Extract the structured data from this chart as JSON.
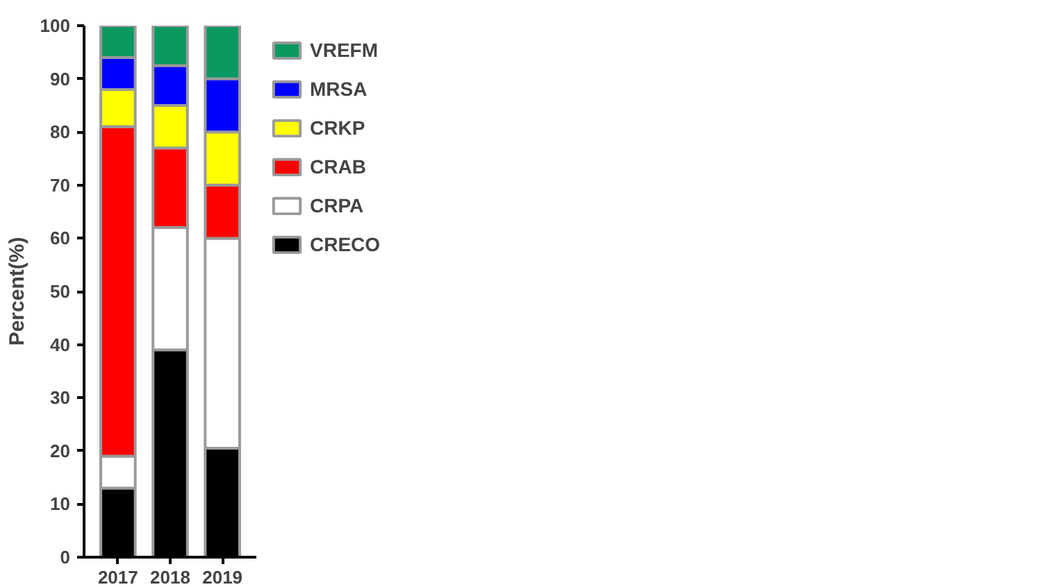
{
  "chart_data": {
    "type": "bar",
    "stacked": true,
    "ylabel": "Percent(%)",
    "categories": [
      "2017",
      "2018",
      "2019"
    ],
    "series": [
      {
        "name": "CRECO",
        "color": "#000000",
        "values": [
          13,
          39,
          20.5
        ]
      },
      {
        "name": "CRPA",
        "color": "#ffffff",
        "values": [
          6,
          23,
          39.5
        ]
      },
      {
        "name": "CRAB",
        "color": "#ff0000",
        "values": [
          62,
          15,
          10
        ]
      },
      {
        "name": "CRKP",
        "color": "#ffff00",
        "values": [
          7,
          8,
          10
        ]
      },
      {
        "name": "MRSA",
        "color": "#0000ff",
        "values": [
          6,
          7.5,
          10
        ]
      },
      {
        "name": "VREFM",
        "color": "#0a9960",
        "values": [
          6,
          7.5,
          10
        ]
      }
    ],
    "ylim": [
      0,
      100
    ],
    "yticks": [
      0,
      10,
      20,
      30,
      40,
      50,
      60,
      70,
      80,
      90,
      100
    ],
    "grid": false,
    "legend": "right"
  }
}
